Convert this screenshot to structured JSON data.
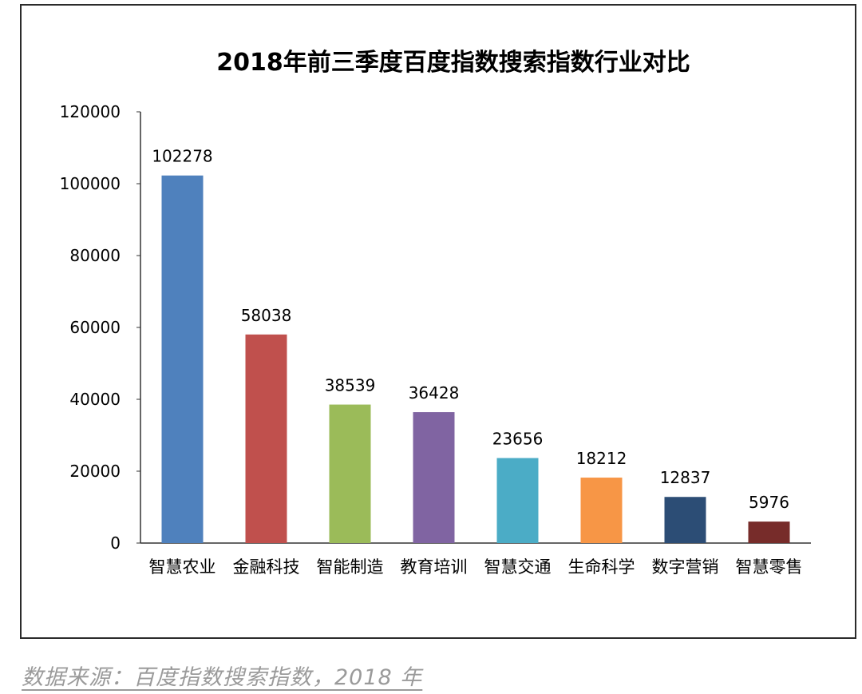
{
  "chart_data": {
    "type": "bar",
    "title": "2018年前三季度百度指数搜索指数行业对比",
    "xlabel": "",
    "ylabel": "",
    "categories": [
      "智慧农业",
      "金融科技",
      "智能制造",
      "教育培训",
      "智慧交通",
      "生命科学",
      "数字营销",
      "智慧零售"
    ],
    "values": [
      102278,
      58038,
      38539,
      36428,
      23656,
      18212,
      12837,
      5976
    ],
    "value_labels": [
      "102278",
      "58038",
      "38539",
      "36428",
      "23656",
      "18212",
      "12837",
      "5976"
    ],
    "colors": [
      "#4f81bd",
      "#c0504d",
      "#9bbb59",
      "#8064a2",
      "#4bacc6",
      "#f79646",
      "#2c4d75",
      "#772c2a"
    ],
    "ylim": [
      0,
      120000
    ],
    "yticks": [
      0,
      20000,
      40000,
      60000,
      80000,
      100000,
      120000
    ],
    "ytick_labels": [
      "0",
      "20000",
      "40000",
      "60000",
      "80000",
      "100000",
      "120000"
    ],
    "grid": false,
    "legend": "none"
  },
  "source_note": "数据来源：百度指数搜索指数，2018 年"
}
